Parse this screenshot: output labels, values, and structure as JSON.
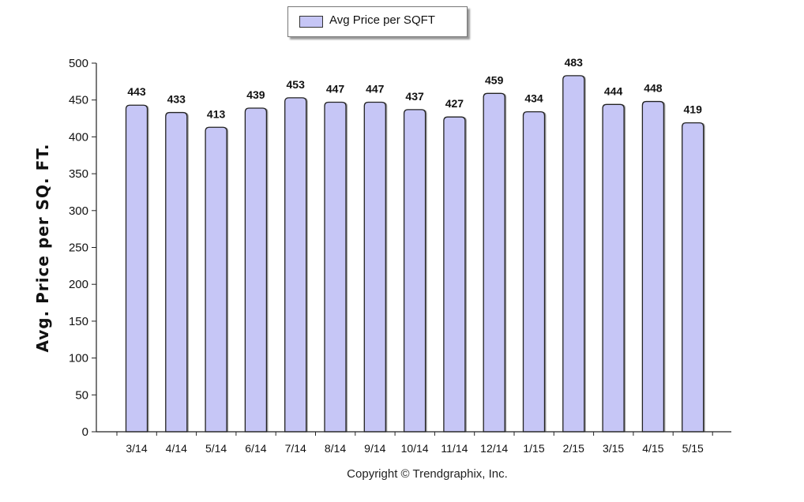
{
  "chart_data": {
    "type": "bar",
    "categories": [
      "3/14",
      "4/14",
      "5/14",
      "6/14",
      "7/14",
      "8/14",
      "9/14",
      "10/14",
      "11/14",
      "12/14",
      "1/15",
      "2/15",
      "3/15",
      "4/15",
      "5/15"
    ],
    "series": [
      {
        "name": "Avg Price per SQFT",
        "values": [
          443,
          433,
          413,
          439,
          453,
          447,
          447,
          437,
          427,
          459,
          434,
          483,
          444,
          448,
          419
        ]
      }
    ],
    "xlabel": "",
    "ylabel": "Avg. Price per SQ. FT.",
    "ylim": [
      0,
      500
    ],
    "yticks": [
      0,
      50,
      100,
      150,
      200,
      250,
      300,
      350,
      400,
      450,
      500
    ],
    "grid": false,
    "legend": "top-center",
    "bar_color": "#c6c6f6",
    "bar_outline_color": "#222222",
    "data_labels": true
  },
  "footer": {
    "copyright": "Copyright © Trendgraphix, Inc."
  }
}
